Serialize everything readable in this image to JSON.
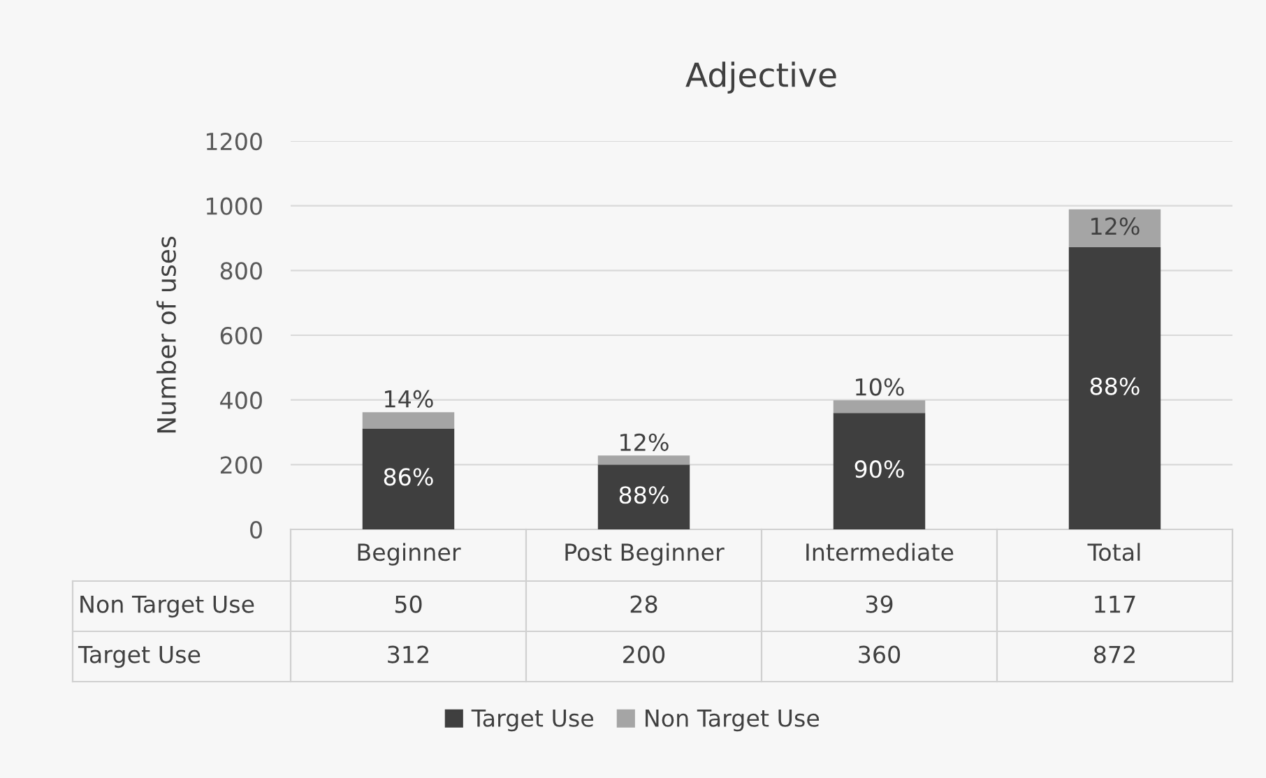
{
  "chart_data": {
    "type": "bar",
    "title": "Adjective",
    "ylabel": "Number of uses",
    "categories": [
      "Beginner",
      "Post Beginner",
      "Intermediate",
      "Total"
    ],
    "stacked": true,
    "series": [
      {
        "name": "Target Use",
        "color": "#3f3f3f",
        "values": [
          312,
          200,
          360,
          872
        ]
      },
      {
        "name": "Non Target Use",
        "color": "#a5a5a5",
        "values": [
          50,
          28,
          39,
          117
        ]
      }
    ],
    "annotations": [
      "86%",
      "88%",
      "90%",
      "88%",
      "14%",
      "12%",
      "10%",
      "12%"
    ],
    "ylim": [
      0,
      1200
    ],
    "yticks": [
      0,
      200,
      400,
      600,
      800,
      1000,
      1200
    ],
    "grid": "y",
    "legend": "bottom",
    "data_labels": true
  }
}
